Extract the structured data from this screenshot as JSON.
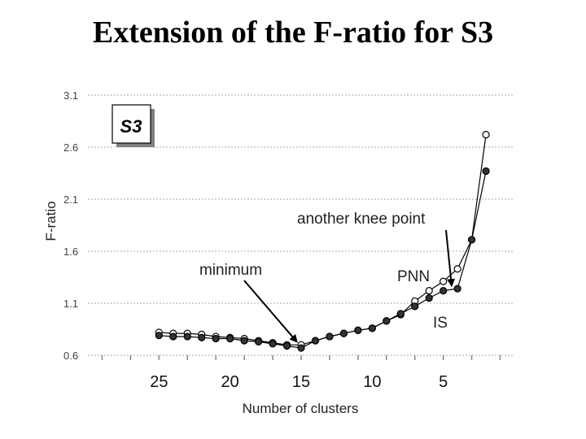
{
  "chart_data": {
    "type": "line",
    "title": "Extension of the F-ratio for S3",
    "xlabel": "Number of clusters",
    "ylabel": "F-ratio",
    "inset_label": "S3",
    "x_reversed": true,
    "xlim": [
      30,
      0
    ],
    "ylim": [
      0.6,
      3.1
    ],
    "yticks": [
      0.6,
      1.1,
      1.6,
      2.1,
      2.6,
      3.1
    ],
    "xticks": [
      25,
      20,
      15,
      10,
      5
    ],
    "grid": true,
    "series": [
      {
        "name": "PNN",
        "marker": "open-circle",
        "x": [
          25,
          24,
          23,
          22,
          21,
          20,
          19,
          18,
          17,
          16,
          15,
          14,
          13,
          12,
          11,
          10,
          9,
          8,
          7,
          6,
          5,
          4,
          3,
          2
        ],
        "y": [
          0.82,
          0.81,
          0.81,
          0.8,
          0.78,
          0.77,
          0.76,
          0.74,
          0.72,
          0.7,
          0.7,
          0.74,
          0.78,
          0.81,
          0.84,
          0.86,
          0.93,
          0.99,
          1.12,
          1.22,
          1.31,
          1.43,
          1.71,
          2.72
        ]
      },
      {
        "name": "IS",
        "marker": "filled-circle",
        "x": [
          25,
          24,
          23,
          22,
          21,
          20,
          19,
          18,
          17,
          16,
          15,
          14,
          13,
          12,
          11,
          10,
          9,
          8,
          7,
          6,
          5,
          4,
          3,
          2
        ],
        "y": [
          0.79,
          0.78,
          0.78,
          0.77,
          0.76,
          0.76,
          0.74,
          0.73,
          0.71,
          0.69,
          0.67,
          0.74,
          0.78,
          0.81,
          0.84,
          0.86,
          0.93,
          1.0,
          1.07,
          1.15,
          1.22,
          1.24,
          1.71,
          2.37
        ]
      }
    ],
    "annotations": [
      {
        "text": "minimum",
        "point_x": 15.2,
        "point_y": 0.7
      },
      {
        "text": "another knee point",
        "point_x": 4.3,
        "point_y": 1.24
      },
      {
        "text": "PNN"
      },
      {
        "text": "IS"
      }
    ]
  }
}
